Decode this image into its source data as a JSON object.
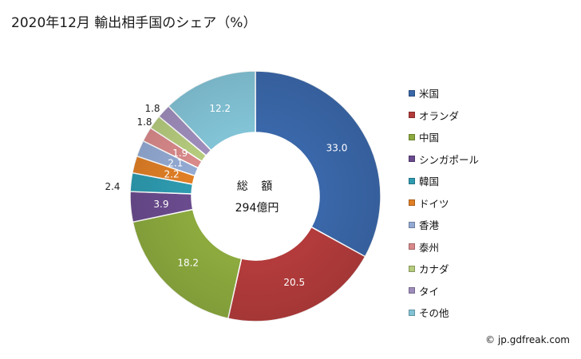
{
  "title": "2020年12月 輸出相手国のシェア（%）",
  "credit": "© jp.gdfreak.com",
  "chart_data": {
    "type": "pie",
    "variant": "donut",
    "title": "2020年12月 輸出相手国のシェア（%）",
    "center_text": [
      "総 額",
      "294億円"
    ],
    "legend_position": "right",
    "categories": [
      "米国",
      "オランダ",
      "中国",
      "シンガポール",
      "韓国",
      "ドイツ",
      "香港",
      "泰州",
      "カナダ",
      "タイ",
      "その他"
    ],
    "values": [
      33.0,
      20.5,
      18.2,
      3.9,
      2.4,
      2.2,
      2.1,
      1.9,
      1.8,
      1.8,
      12.2
    ],
    "labels": [
      "33.0",
      "20.5",
      "18.2",
      "3.9",
      "2.4",
      "2.2",
      "2.1",
      "1.9",
      "1.8",
      "1.8",
      "12.2"
    ],
    "colors": [
      "#3A67A9",
      "#B33B3B",
      "#8CAA3E",
      "#6A4B8E",
      "#2E9BB0",
      "#E07F26",
      "#93AAD3",
      "#D9898A",
      "#B5CB7D",
      "#9E8DBB",
      "#82C3D6"
    ]
  }
}
